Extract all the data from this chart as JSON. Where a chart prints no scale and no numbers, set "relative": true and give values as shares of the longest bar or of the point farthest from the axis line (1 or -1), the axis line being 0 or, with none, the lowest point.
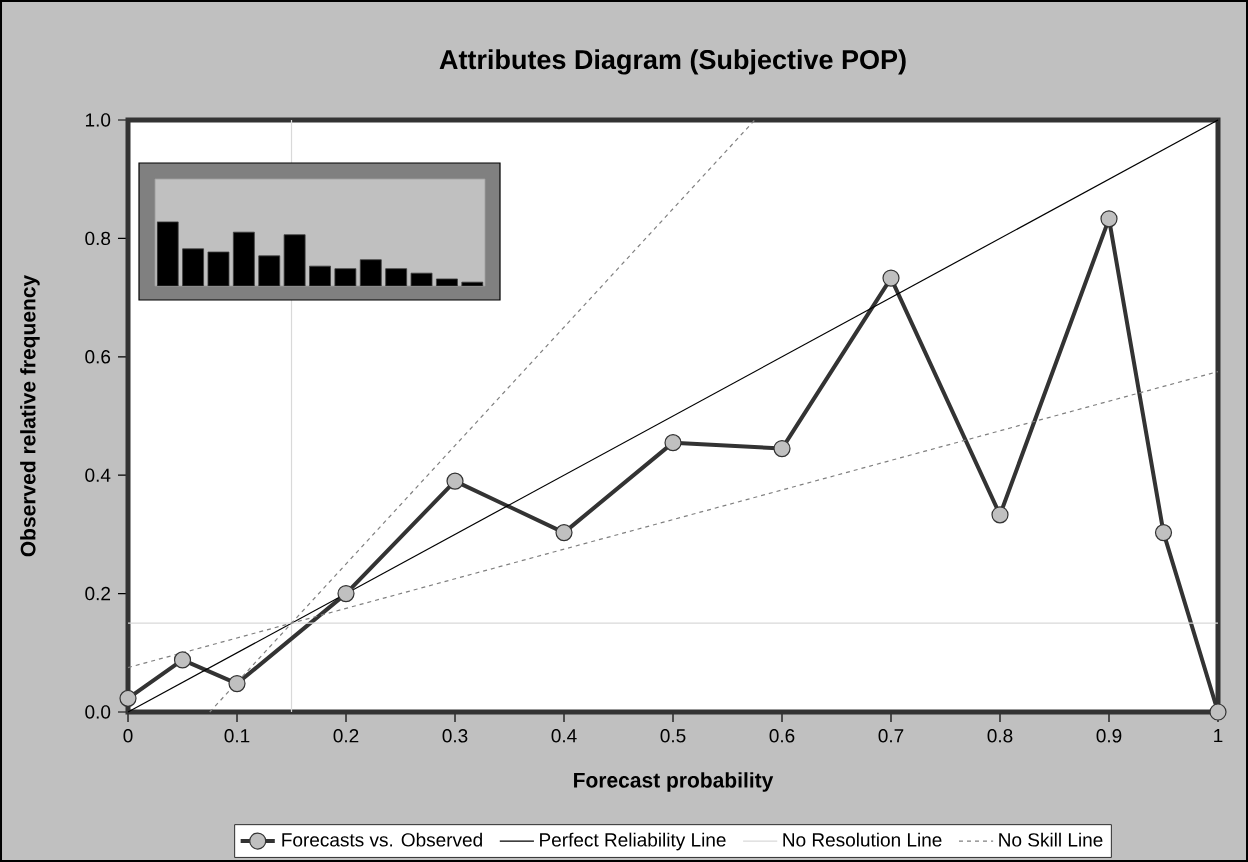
{
  "chart_data": [
    {
      "type": "line",
      "title": "Attributes Diagram (Subjective POP)",
      "xlabel": "Forecast probability",
      "ylabel": "Observed relative frequency",
      "x": [
        0,
        0.05,
        0.1,
        0.2,
        0.3,
        0.4,
        0.5,
        0.6,
        0.7,
        0.8,
        0.9,
        0.95,
        1
      ],
      "series": [
        {
          "name": "Forecasts vs. Observed",
          "color": "#333333",
          "marker": "circle",
          "line_style": "solid",
          "values": [
            0.023,
            0.088,
            0.048,
            0.2,
            0.39,
            0.303,
            0.455,
            0.445,
            0.733,
            0.333,
            0.833,
            0.303,
            0.0
          ]
        },
        {
          "name": "Perfect Reliability Line",
          "color": "#000000",
          "line_style": "solid",
          "x": [
            0,
            1
          ],
          "values": [
            0,
            1
          ]
        },
        {
          "name": "No Resolution Line",
          "color": "#d9d9d9",
          "line_style": "solid",
          "x": [
            0,
            1
          ],
          "values": [
            0.15,
            0.15
          ]
        },
        {
          "name": "No Skill Line",
          "color": "#808080",
          "line_style": "dotted",
          "x": [
            0,
            1
          ],
          "values": [
            0.075,
            0.575
          ]
        },
        {
          "color": "#808080",
          "line_style": "dotted",
          "x": [
            0.075,
            0.575
          ],
          "values": [
            0,
            1
          ]
        }
      ],
      "ref_lines": [
        {
          "axis": "x",
          "value": 0.15,
          "color": "#d9d9d9"
        }
      ],
      "xlim": [
        0,
        1
      ],
      "ylim": [
        0,
        1
      ],
      "xticks": [
        0,
        0.1,
        0.2,
        0.3,
        0.4,
        0.5,
        0.6,
        0.7,
        0.8,
        0.9,
        1
      ],
      "yticks": [
        {
          "value": 0,
          "label": "0.0"
        },
        {
          "value": 0.2,
          "label": "0.2"
        },
        {
          "value": 0.4,
          "label": "0.4"
        },
        {
          "value": 0.6,
          "label": "0.6"
        },
        {
          "value": 0.8,
          "label": "0.8"
        },
        {
          "value": 1,
          "label": "1.0"
        }
      ],
      "grid": false,
      "legend": "bottom"
    },
    {
      "type": "bar",
      "relative": true,
      "color": "#000000",
      "categories": [
        null,
        null,
        null,
        null,
        null,
        null,
        null,
        null,
        null,
        null,
        null,
        null,
        null
      ],
      "values": [
        1,
        0.58,
        0.53,
        0.84,
        0.47,
        0.8,
        0.31,
        0.27,
        0.41,
        0.27,
        0.2,
        0.11,
        0.06
      ]
    }
  ]
}
